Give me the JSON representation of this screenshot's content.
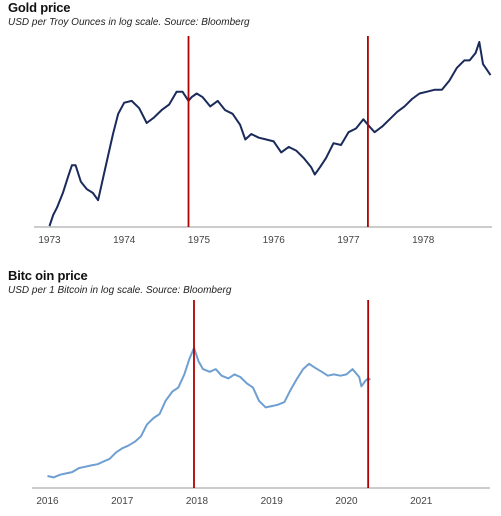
{
  "chart_data": [
    {
      "type": "line",
      "title": "Gold price",
      "subtitle": "USD per Troy Ounces in log scale. Source: Bloomberg",
      "y_scale": "log",
      "grid": false,
      "legend": "none",
      "line_color": "#1a2a5a",
      "marker_color": "#b00000",
      "x_ticks": [
        "1973",
        "1974",
        "1975",
        "1976",
        "1977",
        "1978"
      ],
      "x_range": [
        1972.9,
        1978.92
      ],
      "y_range_log_rel": [
        0,
        1
      ],
      "vertical_markers": [
        1974.86,
        1977.26
      ],
      "series": [
        {
          "x": [
            1973.0,
            1973.05,
            1973.1,
            1973.18,
            1973.25,
            1973.3,
            1973.35,
            1973.42,
            1973.5,
            1973.58,
            1973.65,
            1973.75,
            1973.85,
            1973.92,
            1974.0,
            1974.1,
            1974.2,
            1974.3,
            1974.4,
            1974.5,
            1974.6,
            1974.7,
            1974.78,
            1974.86,
            1974.9,
            1974.97,
            1975.05,
            1975.15,
            1975.25,
            1975.35,
            1975.45,
            1975.55,
            1975.62,
            1975.7,
            1975.8,
            1975.9,
            1976.0,
            1976.1,
            1976.2,
            1976.3,
            1976.4,
            1976.5,
            1976.55,
            1976.62,
            1976.7,
            1976.8,
            1976.9,
            1977.0,
            1977.1,
            1977.2,
            1977.26,
            1977.35,
            1977.45,
            1977.55,
            1977.65,
            1977.75,
            1977.85,
            1977.95,
            1978.05,
            1978.15,
            1978.25,
            1978.35,
            1978.45,
            1978.55,
            1978.62,
            1978.7,
            1978.75,
            1978.8,
            1978.85,
            1978.9
          ],
          "y": [
            0.0,
            0.06,
            0.1,
            0.18,
            0.27,
            0.33,
            0.33,
            0.24,
            0.2,
            0.18,
            0.14,
            0.32,
            0.5,
            0.61,
            0.67,
            0.68,
            0.64,
            0.56,
            0.59,
            0.63,
            0.66,
            0.73,
            0.73,
            0.68,
            0.7,
            0.72,
            0.7,
            0.65,
            0.68,
            0.63,
            0.61,
            0.55,
            0.47,
            0.5,
            0.48,
            0.47,
            0.46,
            0.4,
            0.43,
            0.41,
            0.37,
            0.32,
            0.28,
            0.32,
            0.37,
            0.45,
            0.44,
            0.51,
            0.53,
            0.58,
            0.55,
            0.51,
            0.54,
            0.58,
            0.62,
            0.65,
            0.69,
            0.72,
            0.73,
            0.74,
            0.74,
            0.79,
            0.86,
            0.9,
            0.9,
            0.94,
            1.0,
            0.88,
            0.85,
            0.82
          ]
        }
      ]
    },
    {
      "type": "line",
      "title": "Bitc oin price",
      "subtitle": "USD per 1 Bitcoin in log scale. Source: Bloomberg",
      "y_scale": "log",
      "grid": false,
      "legend": "none",
      "line_color": "#6f9fd0",
      "marker_color": "#b00000",
      "x_ticks": [
        "2016",
        "2017",
        "2018",
        "2019",
        "2020",
        "2021"
      ],
      "x_range": [
        2015.9,
        2021.92
      ],
      "y_range_log_rel": [
        0,
        1
      ],
      "vertical_markers": [
        2017.96,
        2020.29
      ],
      "series": [
        {
          "x": [
            2016.0,
            2016.08,
            2016.17,
            2016.25,
            2016.33,
            2016.42,
            2016.5,
            2016.58,
            2016.67,
            2016.75,
            2016.83,
            2016.92,
            2017.0,
            2017.08,
            2017.17,
            2017.25,
            2017.33,
            2017.42,
            2017.5,
            2017.58,
            2017.67,
            2017.75,
            2017.83,
            2017.9,
            2017.96,
            2018.02,
            2018.08,
            2018.17,
            2018.25,
            2018.33,
            2018.42,
            2018.5,
            2018.58,
            2018.67,
            2018.75,
            2018.83,
            2018.92,
            2019.0,
            2019.08,
            2019.17,
            2019.25,
            2019.33,
            2019.42,
            2019.5,
            2019.58,
            2019.67,
            2019.75,
            2019.83,
            2019.92,
            2020.0,
            2020.08,
            2020.17,
            2020.2,
            2020.25,
            2020.29,
            2020.32
          ],
          "y": [
            0.03,
            0.02,
            0.04,
            0.05,
            0.06,
            0.09,
            0.1,
            0.11,
            0.12,
            0.14,
            0.16,
            0.21,
            0.24,
            0.26,
            0.29,
            0.33,
            0.42,
            0.47,
            0.5,
            0.6,
            0.67,
            0.7,
            0.8,
            0.92,
            1.0,
            0.9,
            0.84,
            0.82,
            0.84,
            0.79,
            0.77,
            0.8,
            0.78,
            0.73,
            0.7,
            0.6,
            0.55,
            0.56,
            0.57,
            0.59,
            0.68,
            0.76,
            0.84,
            0.88,
            0.85,
            0.82,
            0.79,
            0.8,
            0.79,
            0.8,
            0.84,
            0.78,
            0.71,
            0.75,
            0.77,
            0.76
          ]
        }
      ]
    }
  ]
}
